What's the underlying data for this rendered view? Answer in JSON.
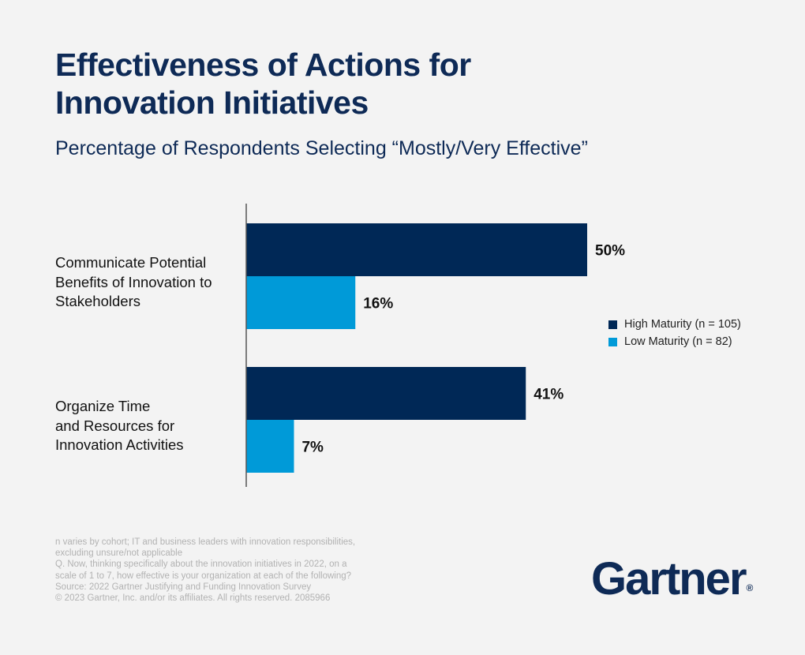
{
  "header": {
    "title_line1": "Effectiveness of Actions for",
    "title_line2": "Innovation Initiatives",
    "subtitle": "Percentage of Respondents Selecting “Mostly/Very Effective”"
  },
  "chart_data": {
    "type": "bar",
    "orientation": "horizontal",
    "title": "Effectiveness of Actions for Innovation Initiatives",
    "subtitle": "Percentage of Respondents Selecting “Mostly/Very Effective”",
    "categories": [
      [
        "Communicate Potential",
        "Benefits of Innovation to",
        "Stakeholders"
      ],
      [
        "Organize Time",
        "and Resources for",
        "Innovation Activities"
      ]
    ],
    "series": [
      {
        "name": "High Maturity (n = 105)",
        "color": "#002856",
        "values": [
          50,
          41
        ],
        "labels": [
          "50%",
          "41%"
        ]
      },
      {
        "name": "Low Maturity (n = 82)",
        "color": "#009ad8",
        "values": [
          16,
          7
        ],
        "labels": [
          "16%",
          "7%"
        ]
      }
    ],
    "xlim": [
      0,
      100
    ],
    "grid": false,
    "legend_position": "right"
  },
  "footnotes": [
    "n varies by cohort; IT and business leaders with innovation responsibilities,",
    "excluding unsure/not applicable",
    "Q. Now, thinking specifically about the innovation initiatives in 2022, on a",
    "scale of 1 to 7, how effective is your organization at each of the following?",
    "Source: 2022 Gartner Justifying and Funding Innovation Survey",
    "© 2023 Gartner, Inc. and/or its affiliates. All rights reserved. 2085966"
  ],
  "logo": {
    "text": "Gartner",
    "mark": "®"
  }
}
